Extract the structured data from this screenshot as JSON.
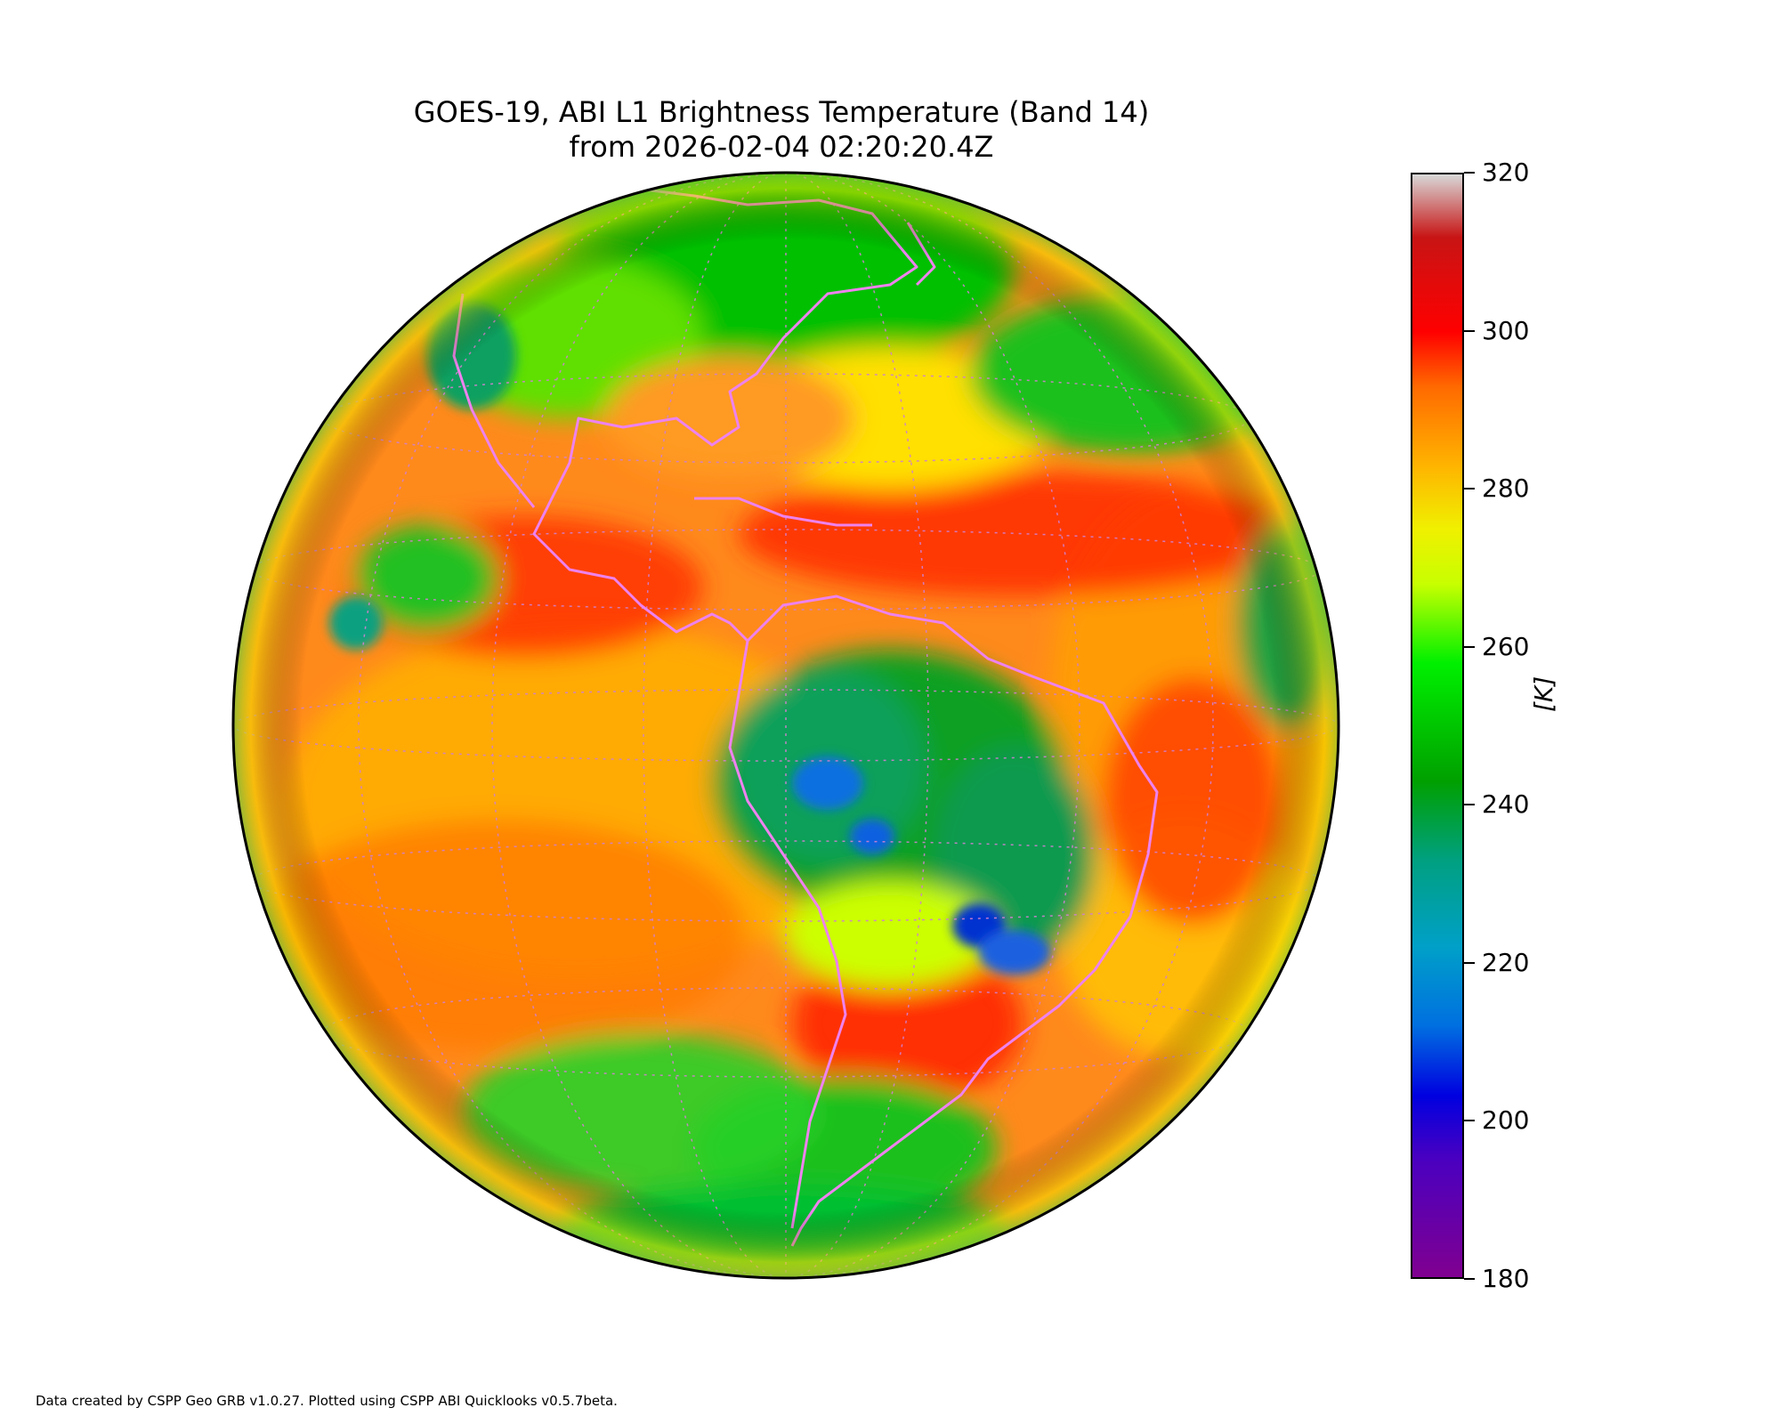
{
  "figure": {
    "title_line1": "GOES-19, ABI L1 Brightness Temperature (Band 14)",
    "title_line2": "from 2026-02-04 02:20:20.4Z",
    "footer": "Data created by CSPP Geo GRB v1.0.27. Plotted using CSPP ABI Quicklooks v0.5.7beta."
  },
  "colorbar": {
    "unit_label": "[K]",
    "range": [
      180,
      320
    ],
    "ticks": [
      "320",
      "300",
      "280",
      "260",
      "240",
      "220",
      "200",
      "180"
    ],
    "tick_values": [
      320,
      300,
      280,
      260,
      240,
      220,
      200,
      180
    ],
    "stops": [
      {
        "value": 320,
        "color": "#d8d8d8"
      },
      {
        "value": 312,
        "color": "#c81414"
      },
      {
        "value": 300,
        "color": "#ff0000"
      },
      {
        "value": 293,
        "color": "#ff6a00"
      },
      {
        "value": 283,
        "color": "#ffb400"
      },
      {
        "value": 275,
        "color": "#f0f000"
      },
      {
        "value": 268,
        "color": "#c8ff00"
      },
      {
        "value": 258,
        "color": "#00f000"
      },
      {
        "value": 243,
        "color": "#00a000"
      },
      {
        "value": 233,
        "color": "#00a080"
      },
      {
        "value": 222,
        "color": "#00a0c8"
      },
      {
        "value": 212,
        "color": "#0070e0"
      },
      {
        "value": 203,
        "color": "#0000e0"
      },
      {
        "value": 195,
        "color": "#4a00c0"
      },
      {
        "value": 180,
        "color": "#800090"
      }
    ]
  },
  "map": {
    "coastline_color": "#ee82ee",
    "gridline_color": "#d080d0",
    "ocean_color": "#ff8a1c",
    "land_color": "#22b022"
  }
}
